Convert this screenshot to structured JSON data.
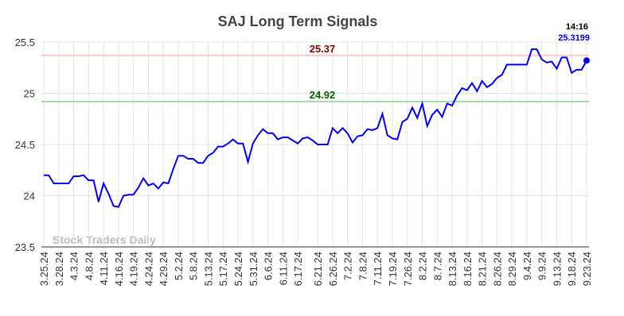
{
  "chart_data": {
    "type": "line",
    "title": "SAJ Long Term Signals",
    "watermark": "Stock Traders Daily",
    "categories": [
      "3.25.24",
      null,
      null,
      "3.28.24",
      null,
      null,
      "4.3.24",
      null,
      null,
      "4.8.24",
      null,
      null,
      "4.11.24",
      null,
      null,
      "4.16.24",
      null,
      null,
      "4.19.24",
      null,
      null,
      "4.24.24",
      null,
      null,
      "4.29.24",
      null,
      null,
      "5.2.24",
      null,
      null,
      "5.8.24",
      null,
      null,
      "5.13.24",
      null,
      null,
      "5.17.24",
      null,
      null,
      "5.24.24",
      null,
      null,
      "5.31.24",
      null,
      null,
      "6.6.24",
      null,
      null,
      "6.11.24",
      null,
      null,
      "6.17.24",
      null,
      null,
      null,
      "6.21.24",
      null,
      null,
      "6.26.24",
      null,
      null,
      "7.2.24",
      null,
      null,
      "7.8.24",
      null,
      null,
      "7.11.24",
      null,
      null,
      "7.19.24",
      null,
      null,
      "7.26.24",
      null,
      null,
      "8.2.24",
      null,
      null,
      "8.7.24",
      null,
      null,
      "8.13.24",
      null,
      null,
      "8.16.24",
      null,
      null,
      "8.21.24",
      null,
      null,
      "8.26.24",
      null,
      null,
      "8.29.24",
      null,
      null,
      "9.4.24",
      null,
      null,
      "9.9.24",
      null,
      null,
      "9.13.24",
      null,
      null,
      "9.18.24",
      null,
      null,
      "9.23.24"
    ],
    "series": [
      {
        "color": "#0000ff",
        "values": [
          24.2,
          24.2,
          24.12,
          24.12,
          24.12,
          24.12,
          24.19,
          24.19,
          24.2,
          24.15,
          24.15,
          23.94,
          24.12,
          24.02,
          23.9,
          23.89,
          24.0,
          24.01,
          24.01,
          24.08,
          24.17,
          24.1,
          24.12,
          24.07,
          24.13,
          24.12,
          24.26,
          24.39,
          24.39,
          24.36,
          24.36,
          24.32,
          24.32,
          24.39,
          24.42,
          24.48,
          24.48,
          24.51,
          24.55,
          24.51,
          24.51,
          24.33,
          24.51,
          24.59,
          24.65,
          24.61,
          24.61,
          24.55,
          24.57,
          24.57,
          24.54,
          24.51,
          24.56,
          24.57,
          24.54,
          24.5,
          24.5,
          24.5,
          24.66,
          24.61,
          24.66,
          24.61,
          24.52,
          24.58,
          24.59,
          24.65,
          24.64,
          24.66,
          24.8,
          24.59,
          24.56,
          24.55,
          24.72,
          24.75,
          24.86,
          24.76,
          24.9,
          24.68,
          24.79,
          24.84,
          24.77,
          24.9,
          24.88,
          24.98,
          25.05,
          25.03,
          25.1,
          25.02,
          25.12,
          25.06,
          25.09,
          25.15,
          25.18,
          25.28,
          25.28,
          25.28,
          25.28,
          25.28,
          25.43,
          25.43,
          25.33,
          25.3,
          25.31,
          25.24,
          25.35,
          25.35,
          25.2,
          25.23,
          25.23,
          25.3199
        ]
      }
    ],
    "last_time": "14:16",
    "hlines": [
      {
        "value": 25.37,
        "line_color": "#ffc8c8",
        "text_color": "#8b0000"
      },
      {
        "value": 24.92,
        "line_color": "#99e699",
        "text_color": "#006400"
      }
    ],
    "ylim": [
      23.5,
      25.5
    ],
    "yticks": [
      23.5,
      24,
      24.5,
      25,
      25.5
    ],
    "grid": true
  }
}
